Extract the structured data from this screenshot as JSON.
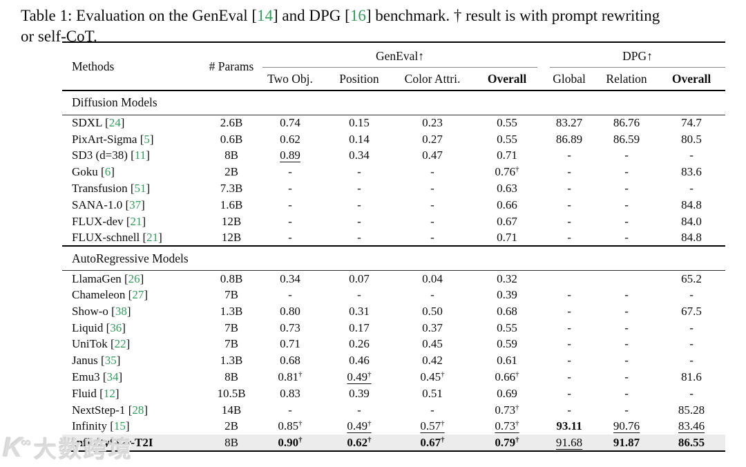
{
  "caption": {
    "line1_parts": [
      {
        "text": "Table 1: Evaluation on the GenEval ["
      },
      {
        "text": "14",
        "green": true
      },
      {
        "text": "] and DPG ["
      },
      {
        "text": "16",
        "green": true
      },
      {
        "text": "] benchmark. † result is with prompt rewriting"
      }
    ],
    "line2": "or self-CoT."
  },
  "watermark": {
    "logo_main": "K",
    "logo_sup": "∞",
    "text": "大数跨境"
  },
  "chart_data": {
    "type": "table",
    "title": "Evaluation on the GenEval and DPG benchmark",
    "columns": [
      "Methods",
      "# Params",
      "GenEval Two Obj.",
      "GenEval Position",
      "GenEval Color Attri.",
      "GenEval Overall",
      "DPG Global",
      "DPG Relation",
      "DPG Overall"
    ]
  },
  "table": {
    "header": {
      "methods": "Methods",
      "params": "# Params",
      "group1": "GenEval↑",
      "group2": "DPG↑",
      "sub": [
        "Two Obj.",
        "Position",
        "Color Attri.",
        "Overall",
        "Global",
        "Relation",
        "Overall"
      ]
    },
    "sections": [
      {
        "title": "Diffusion Models",
        "rows": [
          {
            "method": "SDXL",
            "cite": "24",
            "params": "2.6B",
            "cells": [
              {
                "v": "0.74"
              },
              {
                "v": "0.15"
              },
              {
                "v": "0.23"
              },
              {
                "v": "0.55"
              },
              {
                "v": "83.27"
              },
              {
                "v": "86.76"
              },
              {
                "v": "74.7"
              }
            ]
          },
          {
            "method": "PixArt-Sigma",
            "cite": "5",
            "params": "0.6B",
            "cells": [
              {
                "v": "0.62"
              },
              {
                "v": "0.14"
              },
              {
                "v": "0.27"
              },
              {
                "v": "0.55"
              },
              {
                "v": "86.89"
              },
              {
                "v": "86.59"
              },
              {
                "v": "80.5"
              }
            ]
          },
          {
            "method": "SD3 (d=38)",
            "cite": "11",
            "params": "8B",
            "cells": [
              {
                "v": "0.89",
                "u": true
              },
              {
                "v": "0.34"
              },
              {
                "v": "0.47"
              },
              {
                "v": "0.71"
              },
              {
                "v": "-"
              },
              {
                "v": "-"
              },
              {
                "v": "-"
              }
            ]
          },
          {
            "method": "Goku",
            "cite": "6",
            "params": "2B",
            "cells": [
              {
                "v": "-"
              },
              {
                "v": "-"
              },
              {
                "v": "-"
              },
              {
                "v": "0.76",
                "d": true
              },
              {
                "v": "-"
              },
              {
                "v": "-"
              },
              {
                "v": "83.6"
              }
            ]
          },
          {
            "method": "Transfusion",
            "cite": "51",
            "params": "7.3B",
            "cells": [
              {
                "v": "-"
              },
              {
                "v": "-"
              },
              {
                "v": "-"
              },
              {
                "v": "0.63"
              },
              {
                "v": "-"
              },
              {
                "v": "-"
              },
              {
                "v": "-"
              }
            ]
          },
          {
            "method": "SANA-1.0",
            "cite": "37",
            "params": "1.6B",
            "cells": [
              {
                "v": "-"
              },
              {
                "v": "-"
              },
              {
                "v": "-"
              },
              {
                "v": "0.66"
              },
              {
                "v": "-"
              },
              {
                "v": "-"
              },
              {
                "v": "84.8"
              }
            ]
          },
          {
            "method": "FLUX-dev",
            "cite": "21",
            "params": "12B",
            "cells": [
              {
                "v": "-"
              },
              {
                "v": "-"
              },
              {
                "v": "-"
              },
              {
                "v": "0.67"
              },
              {
                "v": "-"
              },
              {
                "v": "-"
              },
              {
                "v": "84.0"
              }
            ]
          },
          {
            "method": "FLUX-schnell",
            "cite": "21",
            "params": "12B",
            "cells": [
              {
                "v": "-"
              },
              {
                "v": "-"
              },
              {
                "v": "-"
              },
              {
                "v": "0.71"
              },
              {
                "v": "-"
              },
              {
                "v": "-"
              },
              {
                "v": "84.8"
              }
            ]
          }
        ]
      },
      {
        "title": "AutoRegressive Models",
        "rows": [
          {
            "method": "LlamaGen",
            "cite": "26",
            "params": "0.8B",
            "cells": [
              {
                "v": "0.34"
              },
              {
                "v": "0.07"
              },
              {
                "v": "0.04"
              },
              {
                "v": "0.32"
              },
              {
                "v": ""
              },
              {
                "v": ""
              },
              {
                "v": "65.2"
              }
            ]
          },
          {
            "method": "Chameleon",
            "cite": "27",
            "params": "7B",
            "cells": [
              {
                "v": "-"
              },
              {
                "v": "-"
              },
              {
                "v": "-"
              },
              {
                "v": "0.39"
              },
              {
                "v": "-"
              },
              {
                "v": "-"
              },
              {
                "v": "-"
              }
            ]
          },
          {
            "method": "Show-o",
            "cite": "38",
            "params": "1.3B",
            "cells": [
              {
                "v": "0.80"
              },
              {
                "v": "0.31"
              },
              {
                "v": "0.50"
              },
              {
                "v": "0.68"
              },
              {
                "v": "-"
              },
              {
                "v": "-"
              },
              {
                "v": "67.5"
              }
            ]
          },
          {
            "method": "Liquid",
            "cite": "36",
            "params": "7B",
            "cells": [
              {
                "v": "0.73"
              },
              {
                "v": "0.17"
              },
              {
                "v": "0.37"
              },
              {
                "v": "0.55"
              },
              {
                "v": "-"
              },
              {
                "v": "-"
              },
              {
                "v": "-"
              }
            ]
          },
          {
            "method": "UniTok",
            "cite": "22",
            "params": "7B",
            "cells": [
              {
                "v": "0.71"
              },
              {
                "v": "0.26"
              },
              {
                "v": "0.45"
              },
              {
                "v": "0.59"
              },
              {
                "v": "-"
              },
              {
                "v": "-"
              },
              {
                "v": "-"
              }
            ]
          },
          {
            "method": "Janus",
            "cite": "35",
            "params": "1.3B",
            "cells": [
              {
                "v": "0.68"
              },
              {
                "v": "0.46"
              },
              {
                "v": "0.42"
              },
              {
                "v": "0.61"
              },
              {
                "v": "-"
              },
              {
                "v": "-"
              },
              {
                "v": "-"
              }
            ]
          },
          {
            "method": "Emu3",
            "cite": "34",
            "params": "8B",
            "cells": [
              {
                "v": "0.81",
                "d": true
              },
              {
                "v": "0.49",
                "d": true,
                "u": true
              },
              {
                "v": "0.45",
                "d": true
              },
              {
                "v": "0.66",
                "d": true
              },
              {
                "v": "-"
              },
              {
                "v": "-"
              },
              {
                "v": "81.6"
              }
            ]
          },
          {
            "method": "Fluid",
            "cite": "12",
            "params": "10.5B",
            "cells": [
              {
                "v": "0.83"
              },
              {
                "v": "0.39"
              },
              {
                "v": "0.51"
              },
              {
                "v": "0.69"
              },
              {
                "v": "-"
              },
              {
                "v": "-"
              },
              {
                "v": "-"
              }
            ]
          },
          {
            "method": "NextStep-1",
            "cite": "28",
            "params": "14B",
            "cells": [
              {
                "v": "-"
              },
              {
                "v": "-"
              },
              {
                "v": "-"
              },
              {
                "v": "0.73",
                "d": true
              },
              {
                "v": "-"
              },
              {
                "v": "-"
              },
              {
                "v": "85.28"
              }
            ]
          },
          {
            "method": "Infinity",
            "cite": "15",
            "params": "2B",
            "cells": [
              {
                "v": "0.85",
                "d": true
              },
              {
                "v": "0.49",
                "d": true,
                "u": true
              },
              {
                "v": "0.57",
                "d": true,
                "u": true
              },
              {
                "v": "0.73",
                "d": true,
                "u": true
              },
              {
                "v": "93.11",
                "b": true
              },
              {
                "v": "90.76",
                "u": true
              },
              {
                "v": "83.46",
                "u": true
              }
            ]
          },
          {
            "method": "InfinityStar-T2I",
            "params": "8B",
            "highlight": true,
            "bold_method": true,
            "cells": [
              {
                "v": "0.90",
                "d": true,
                "b": true
              },
              {
                "v": "0.62",
                "d": true,
                "b": true
              },
              {
                "v": "0.67",
                "d": true,
                "b": true
              },
              {
                "v": "0.79",
                "d": true,
                "b": true
              },
              {
                "v": "91.68",
                "u": true
              },
              {
                "v": "91.87",
                "b": true
              },
              {
                "v": "86.55",
                "b": true
              }
            ]
          }
        ]
      }
    ]
  }
}
